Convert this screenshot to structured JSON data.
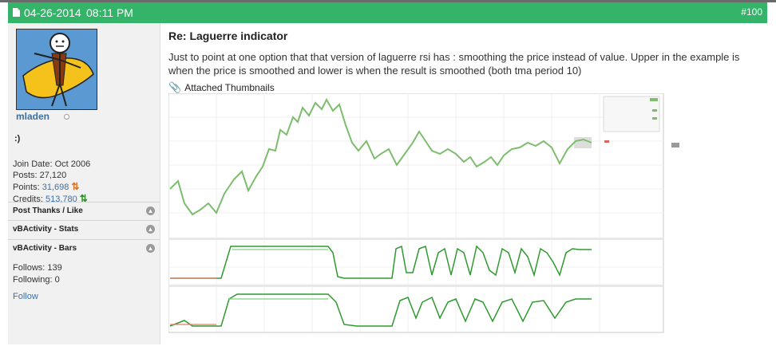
{
  "post": {
    "date": "04-26-2014",
    "time": "08:11 PM",
    "number": "#100",
    "title": "Re: Laguerre indicator",
    "body": "Just to point at one option that that version of laguerre rsi has : smoothing the price instead of value. Upper in the example is when the price is smoothed and lower is when the result is smoothed (both tma period 10)",
    "attachments_label": "Attached Thumbnails"
  },
  "user": {
    "name": "mladen",
    "title": ":)",
    "join_label": "Join Date:",
    "join_value": "Oct 2006",
    "posts_label": "Posts:",
    "posts_value": "27,120",
    "points_label": "Points:",
    "points_value": "31,698",
    "credits_label": "Credits:",
    "credits_value": "513,780",
    "follows_label": "Follows:",
    "follows_value": "139",
    "following_label": "Following:",
    "following_value": "0",
    "follow_link": "Follow"
  },
  "sections": {
    "thanks": "Post Thanks / Like",
    "stats": "vBActivity - Stats",
    "bars": "vBActivity - Bars"
  },
  "icons": {
    "doc": "document-icon",
    "clip": "paperclip-icon",
    "points": "arrows-icon",
    "credits": "arrows-icon",
    "collapse": "collapse-icon"
  },
  "colors": {
    "header": "#33b469",
    "link": "#3e6fa0",
    "price_line": "#7dbd6d",
    "indicator_line": "#2e9a2e",
    "signal_line": "#e87a6a"
  }
}
